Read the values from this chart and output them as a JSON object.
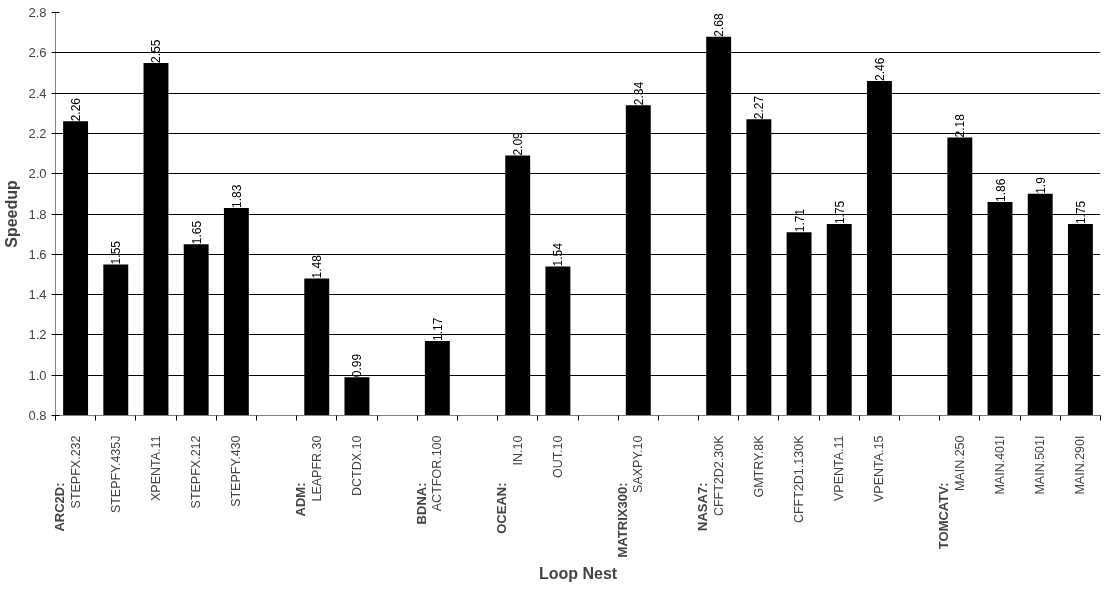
{
  "chart_data": {
    "type": "bar",
    "xlabel": "Loop Nest",
    "ylabel": "Speedup",
    "categories": [
      "STEPFX.232",
      "STEPFY.435J",
      "XPENTA.11",
      "STEPFX.212",
      "STEPFY.430",
      null,
      "LEAPFR.30",
      "DCTDX.10",
      null,
      "ACTFOR.100",
      null,
      "IN.10",
      "OUT.10",
      null,
      "SAXPY.10",
      null,
      "CFFT2D2.30K",
      "GMTRY.8K",
      "CFFT2D1.130K",
      "VPENTA.11",
      "VPENTA.15",
      null,
      "MAIN.250",
      "MAIN.401I",
      "MAIN.501I",
      "MAIN.290I"
    ],
    "values": [
      2.26,
      1.55,
      2.55,
      1.65,
      1.83,
      null,
      1.48,
      0.99,
      null,
      1.17,
      null,
      2.09,
      1.54,
      null,
      2.34,
      null,
      2.68,
      2.27,
      1.71,
      1.75,
      2.46,
      null,
      2.18,
      1.86,
      1.9,
      1.75
    ],
    "color": "#000000",
    "data_labels": true,
    "ylim": [
      0.8,
      2.8
    ],
    "yticks": [
      0.8,
      {
        "value": 1,
        "label": "1.0"
      },
      1.2,
      1.4,
      1.6,
      1.8,
      {
        "value": 2,
        "label": "2.0"
      },
      2.2,
      2.4,
      2.6,
      2.8
    ],
    "grid": "y",
    "annotations": [
      "ARC2D:",
      "ADM:",
      "BDNA:",
      "OCEAN:",
      "MATRIX300:",
      "NASA7:",
      "TOMCATV:"
    ]
  }
}
